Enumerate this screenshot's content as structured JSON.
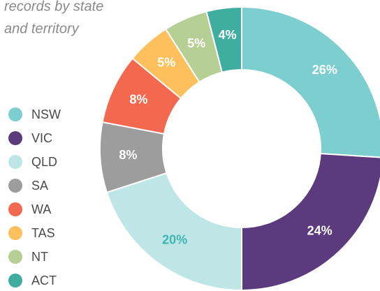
{
  "chart_data": {
    "type": "donut",
    "title_lines": [
      "records by state",
      "and territory"
    ],
    "categories": [
      "NSW",
      "VIC",
      "QLD",
      "SA",
      "WA",
      "TAS",
      "NT",
      "ACT"
    ],
    "values": [
      26,
      24,
      20,
      8,
      8,
      5,
      5,
      4
    ],
    "value_labels": [
      "26%",
      "24%",
      "20%",
      "8%",
      "8%",
      "5%",
      "5%",
      "4%"
    ],
    "colors": [
      "#7dcfcf",
      "#5b3b7d",
      "#bfe6e6",
      "#9d9d9d",
      "#f2694f",
      "#fdc05c",
      "#b6cf95",
      "#40ada1"
    ],
    "label_colors": [
      "#ffffff",
      "#ffffff",
      "#40b3b3",
      "#ffffff",
      "#ffffff",
      "#ffffff",
      "#ffffff",
      "#ffffff"
    ],
    "legend": "left"
  }
}
